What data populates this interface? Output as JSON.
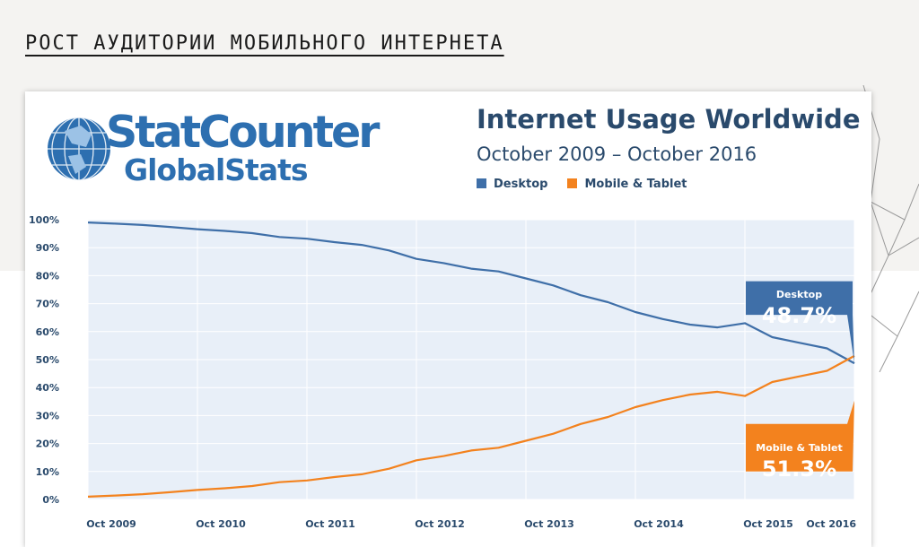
{
  "page": {
    "heading": "РОСТ АУДИТОРИИ МОБИЛЬНОГО ИНТЕРНЕТА"
  },
  "logo": {
    "brand": "StatCounter",
    "sub": "GlobalStats"
  },
  "colors": {
    "desktop": "#3f6fa8",
    "mobile": "#f3821e",
    "plot_bg": "#e8eff8",
    "grid": "#ffffff",
    "text": "#2a4a6c"
  },
  "chart_data": {
    "type": "line",
    "title": "Internet Usage Worldwide",
    "subtitle": "October 2009 – October 2016",
    "xlabel": "",
    "ylabel": "",
    "ylim": [
      0,
      100
    ],
    "y_ticks": [
      "0%",
      "10%",
      "20%",
      "30%",
      "40%",
      "50%",
      "60%",
      "70%",
      "80%",
      "90%",
      "100%"
    ],
    "x_ticks": [
      "Oct 2009",
      "Oct 2010",
      "Oct 2011",
      "Oct 2012",
      "Oct 2013",
      "Oct 2014",
      "Oct 2015",
      "Oct 2016"
    ],
    "x": [
      2009.75,
      2010.0,
      2010.25,
      2010.5,
      2010.75,
      2011.0,
      2011.25,
      2011.5,
      2011.75,
      2012.0,
      2012.25,
      2012.5,
      2012.75,
      2013.0,
      2013.25,
      2013.5,
      2013.75,
      2014.0,
      2014.25,
      2014.5,
      2014.75,
      2015.0,
      2015.25,
      2015.5,
      2015.75,
      2016.0,
      2016.25,
      2016.5,
      2016.75
    ],
    "series": [
      {
        "name": "Desktop",
        "values": [
          99,
          98.6,
          98.1,
          97.4,
          96.6,
          96.0,
          95.2,
          93.8,
          93.2,
          92.0,
          91.0,
          89.0,
          86.0,
          84.5,
          82.5,
          81.5,
          79.0,
          76.5,
          73.0,
          70.5,
          67.0,
          64.5,
          62.5,
          61.5,
          63.0,
          58.0,
          56.0,
          54.0,
          48.7
        ]
      },
      {
        "name": "Mobile & Tablet",
        "values": [
          1,
          1.4,
          1.9,
          2.6,
          3.4,
          4.0,
          4.8,
          6.2,
          6.8,
          8.0,
          9.0,
          11.0,
          14.0,
          15.5,
          17.5,
          18.5,
          21.0,
          23.5,
          27.0,
          29.5,
          33.0,
          35.5,
          37.5,
          38.5,
          37.0,
          42.0,
          44.0,
          46.0,
          51.3
        ]
      }
    ],
    "callouts": [
      {
        "label": "Desktop",
        "value": "48.7%"
      },
      {
        "label": "Mobile & Tablet",
        "value": "51.3%"
      }
    ]
  }
}
